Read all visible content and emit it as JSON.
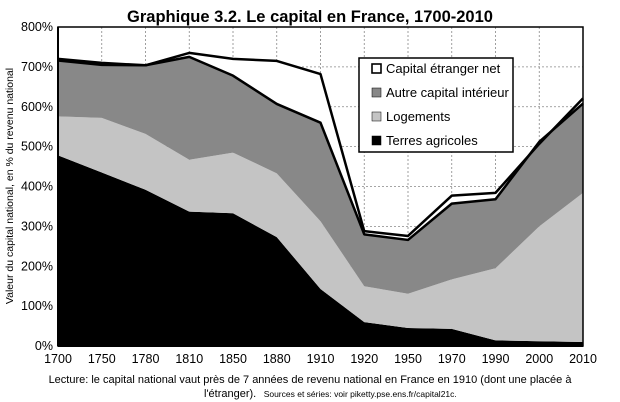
{
  "chart_data": {
    "type": "area",
    "title": "Graphique 3.2. Le capital en France, 1700-2010",
    "ylabel": "Valeur du capital national, en % du revenu national",
    "xlabel": "",
    "x": [
      1700,
      1750,
      1780,
      1810,
      1850,
      1880,
      1910,
      1920,
      1950,
      1970,
      1990,
      2000,
      2010
    ],
    "x_tick_labels": [
      "1700",
      "1750",
      "1780",
      "1810",
      "1850",
      "1880",
      "1910",
      "1920",
      "1950",
      "1970",
      "1990",
      "2000",
      "2010"
    ],
    "y_ticks": [
      0,
      100,
      200,
      300,
      400,
      500,
      600,
      700,
      800
    ],
    "y_tick_labels": [
      "0%",
      "100%",
      "200%",
      "300%",
      "400%",
      "500%",
      "600%",
      "700%",
      "800%"
    ],
    "ylim": [
      0,
      800
    ],
    "grid": true,
    "stacked": true,
    "series": [
      {
        "name": "Terres agricoles",
        "color": "#000000",
        "values": [
          478,
          435,
          392,
          337,
          333,
          273,
          143,
          60,
          45,
          43,
          14,
          12,
          10
        ]
      },
      {
        "name": "Logements",
        "color": "#c4c4c4",
        "values": [
          98,
          137,
          140,
          130,
          152,
          160,
          170,
          90,
          86,
          124,
          181,
          288,
          374
        ]
      },
      {
        "name": "Autre capital intérieur",
        "color": "#888888",
        "values": [
          140,
          133,
          172,
          258,
          193,
          174,
          247,
          130,
          135,
          190,
          173,
          212,
          224
        ]
      },
      {
        "name": "Capital étranger net",
        "color": "#ffffff",
        "values": [
          4,
          5,
          0,
          10,
          42,
          108,
          122,
          8,
          10,
          20,
          16,
          -5,
          13
        ]
      }
    ],
    "legend_order": [
      "Capital étranger net",
      "Autre capital intérieur",
      "Logements",
      "Terres agricoles"
    ],
    "legend_position": "top-right",
    "note_line1": "Lecture: le capital national vaut près de 7 années de revenu national en France en 1910 (dont une placée à",
    "note_line2": "l'étranger).",
    "sources": "Sources et séries: voir piketty.pse.ens.fr/capital21c."
  }
}
